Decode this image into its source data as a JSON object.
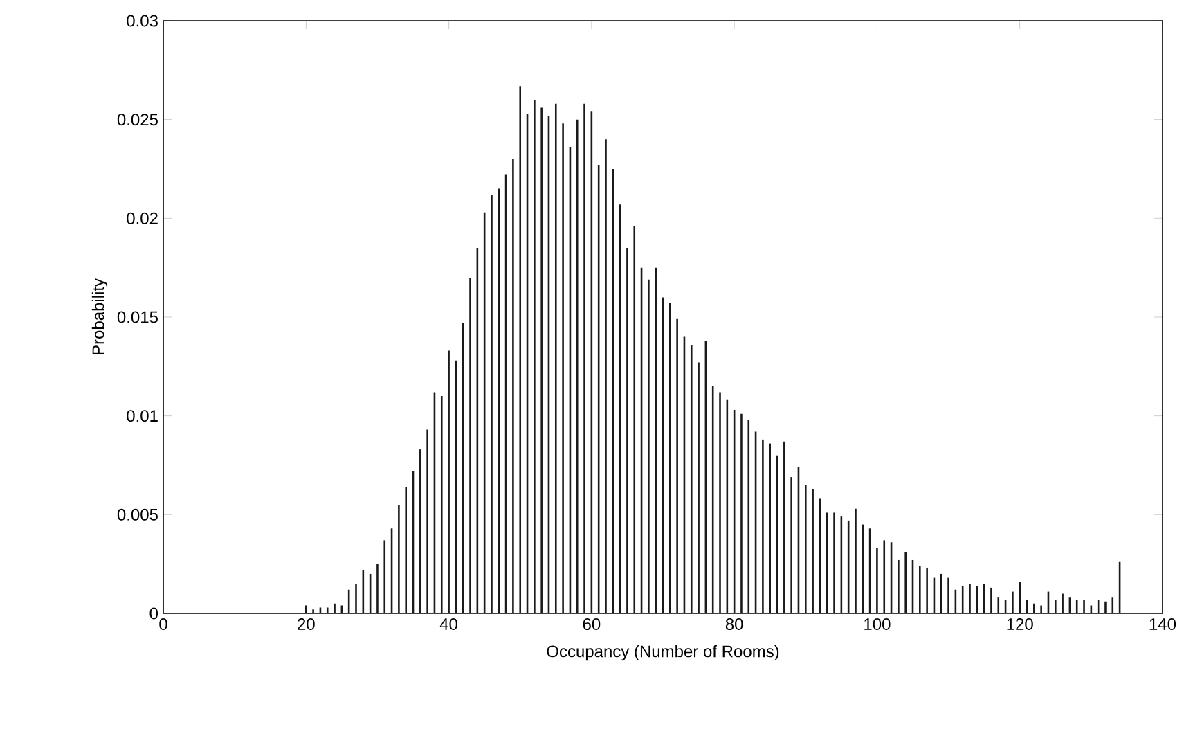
{
  "chart_data": {
    "type": "bar",
    "xlabel": "Occupancy (Number of Rooms)",
    "ylabel": "Probability",
    "color": "#1a1a1a",
    "x": [
      20,
      21,
      22,
      23,
      24,
      25,
      26,
      27,
      28,
      29,
      30,
      31,
      32,
      33,
      34,
      35,
      36,
      37,
      38,
      39,
      40,
      41,
      42,
      43,
      44,
      45,
      46,
      47,
      48,
      49,
      50,
      51,
      52,
      53,
      54,
      55,
      56,
      57,
      58,
      59,
      60,
      61,
      62,
      63,
      64,
      65,
      66,
      67,
      68,
      69,
      70,
      71,
      72,
      73,
      74,
      75,
      76,
      77,
      78,
      79,
      80,
      81,
      82,
      83,
      84,
      85,
      86,
      87,
      88,
      89,
      90,
      91,
      92,
      93,
      94,
      95,
      96,
      97,
      98,
      99,
      100,
      101,
      102,
      103,
      104,
      105,
      106,
      107,
      108,
      109,
      110,
      111,
      112,
      113,
      114,
      115,
      116,
      117,
      118,
      119,
      120,
      121,
      122,
      123,
      124,
      125,
      126,
      127,
      128,
      129,
      130,
      131,
      132,
      133,
      134
    ],
    "values": [
      0.0004,
      0.0002,
      0.0003,
      0.0003,
      0.0005,
      0.0004,
      0.0012,
      0.0015,
      0.0022,
      0.002,
      0.0025,
      0.0037,
      0.0043,
      0.0055,
      0.0064,
      0.0072,
      0.0083,
      0.0093,
      0.0112,
      0.011,
      0.0133,
      0.0128,
      0.0147,
      0.017,
      0.0185,
      0.0203,
      0.0212,
      0.0215,
      0.0222,
      0.023,
      0.0267,
      0.0253,
      0.026,
      0.0256,
      0.0252,
      0.0258,
      0.0248,
      0.0236,
      0.025,
      0.0258,
      0.0254,
      0.0227,
      0.024,
      0.0225,
      0.0207,
      0.0185,
      0.0196,
      0.0175,
      0.0169,
      0.0175,
      0.016,
      0.0157,
      0.0149,
      0.014,
      0.0136,
      0.0127,
      0.0138,
      0.0115,
      0.0112,
      0.0108,
      0.0103,
      0.0101,
      0.0098,
      0.0092,
      0.0088,
      0.0086,
      0.008,
      0.0087,
      0.0069,
      0.0074,
      0.0065,
      0.0063,
      0.0058,
      0.0051,
      0.0051,
      0.0049,
      0.0047,
      0.0053,
      0.0045,
      0.0043,
      0.0033,
      0.0037,
      0.0036,
      0.0027,
      0.0031,
      0.0027,
      0.0024,
      0.0023,
      0.0018,
      0.002,
      0.0018,
      0.0012,
      0.0014,
      0.0015,
      0.0014,
      0.0015,
      0.0013,
      0.0008,
      0.0007,
      0.0011,
      0.0016,
      0.0007,
      0.0005,
      0.0004,
      0.0011,
      0.0007,
      0.001,
      0.0008,
      0.0007,
      0.0007,
      0.0004,
      0.0007,
      0.0006,
      0.0008,
      0.0026
    ],
    "xlim": [
      0,
      140
    ],
    "xticks": [
      0,
      20,
      40,
      60,
      80,
      100,
      120,
      140
    ],
    "ylim": [
      0,
      0.03
    ],
    "yticks": [
      0,
      0.005,
      0.01,
      0.015,
      0.02,
      0.025,
      0.03
    ],
    "grid": false
  }
}
